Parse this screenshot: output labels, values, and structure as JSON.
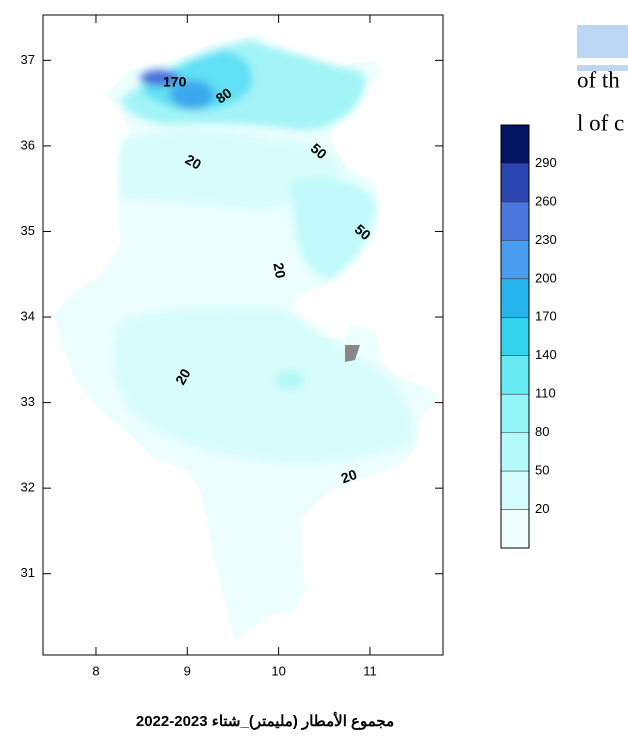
{
  "map": {
    "x_ticks": [
      8,
      9,
      10,
      11
    ],
    "y_ticks": [
      37,
      36,
      35,
      34,
      33,
      32,
      31
    ],
    "xlim": [
      7.42,
      11.8
    ],
    "ylim": [
      30.05,
      37.53
    ],
    "contour_labels": [
      170,
      80,
      50,
      20,
      50,
      20,
      20,
      20
    ],
    "colorbar": {
      "levels": [
        20,
        50,
        80,
        110,
        140,
        170,
        200,
        230,
        260,
        290
      ],
      "colors": [
        "#effefe",
        "#d6fdfd",
        "#b5fbfb",
        "#93f6f6",
        "#66ebf3",
        "#33d3f0",
        "#27b5ee",
        "#4a9ef0",
        "#4a76dd",
        "#2a44b0",
        "#021462"
      ]
    },
    "caption": "مجموع الأمطار (مليمتر)_شتاء 2023-2022"
  },
  "side_text": [
    "of th",
    "l of c"
  ]
}
